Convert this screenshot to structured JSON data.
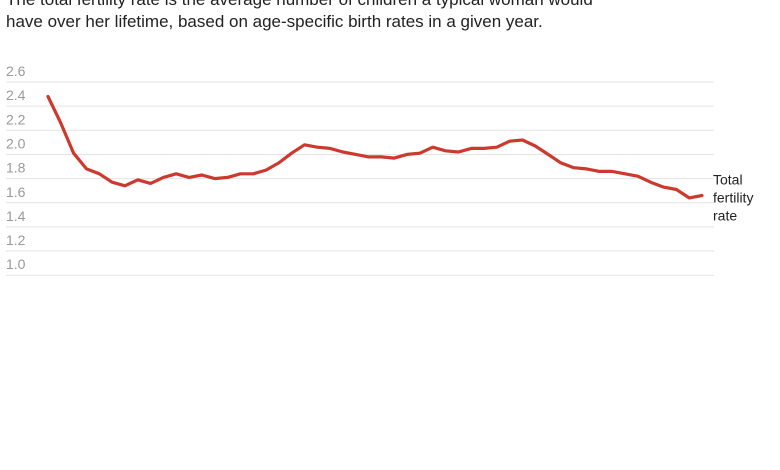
{
  "subtitle": "The total fertility rate is the average number of children a typical woman would\nhave over her lifetime, based on age-specific birth rates in a given year.",
  "chart_data": {
    "type": "line",
    "title": "",
    "xlabel": "",
    "ylabel": "",
    "ylim": [
      1.0,
      2.6
    ],
    "yticks": [
      "1.0",
      "1.2",
      "1.4",
      "1.6",
      "1.8",
      "2.0",
      "2.2",
      "2.4",
      "2.6"
    ],
    "grid": true,
    "series": [
      {
        "name": "Total fertility rate",
        "color": "#cc3a2e",
        "values": [
          2.48,
          2.26,
          2.01,
          1.88,
          1.84,
          1.77,
          1.74,
          1.79,
          1.76,
          1.81,
          1.84,
          1.81,
          1.83,
          1.8,
          1.81,
          1.84,
          1.84,
          1.87,
          1.93,
          2.01,
          2.08,
          2.06,
          2.05,
          2.02,
          2.0,
          1.98,
          1.98,
          1.97,
          2.0,
          2.01,
          2.06,
          2.03,
          2.02,
          2.05,
          2.05,
          2.06,
          2.11,
          2.12,
          2.07,
          2.0,
          1.93,
          1.89,
          1.88,
          1.86,
          1.86,
          1.84,
          1.82,
          1.77,
          1.73,
          1.71,
          1.64,
          1.66
        ]
      }
    ],
    "series_label_lines": [
      "Total",
      "fertility",
      "rate"
    ]
  }
}
